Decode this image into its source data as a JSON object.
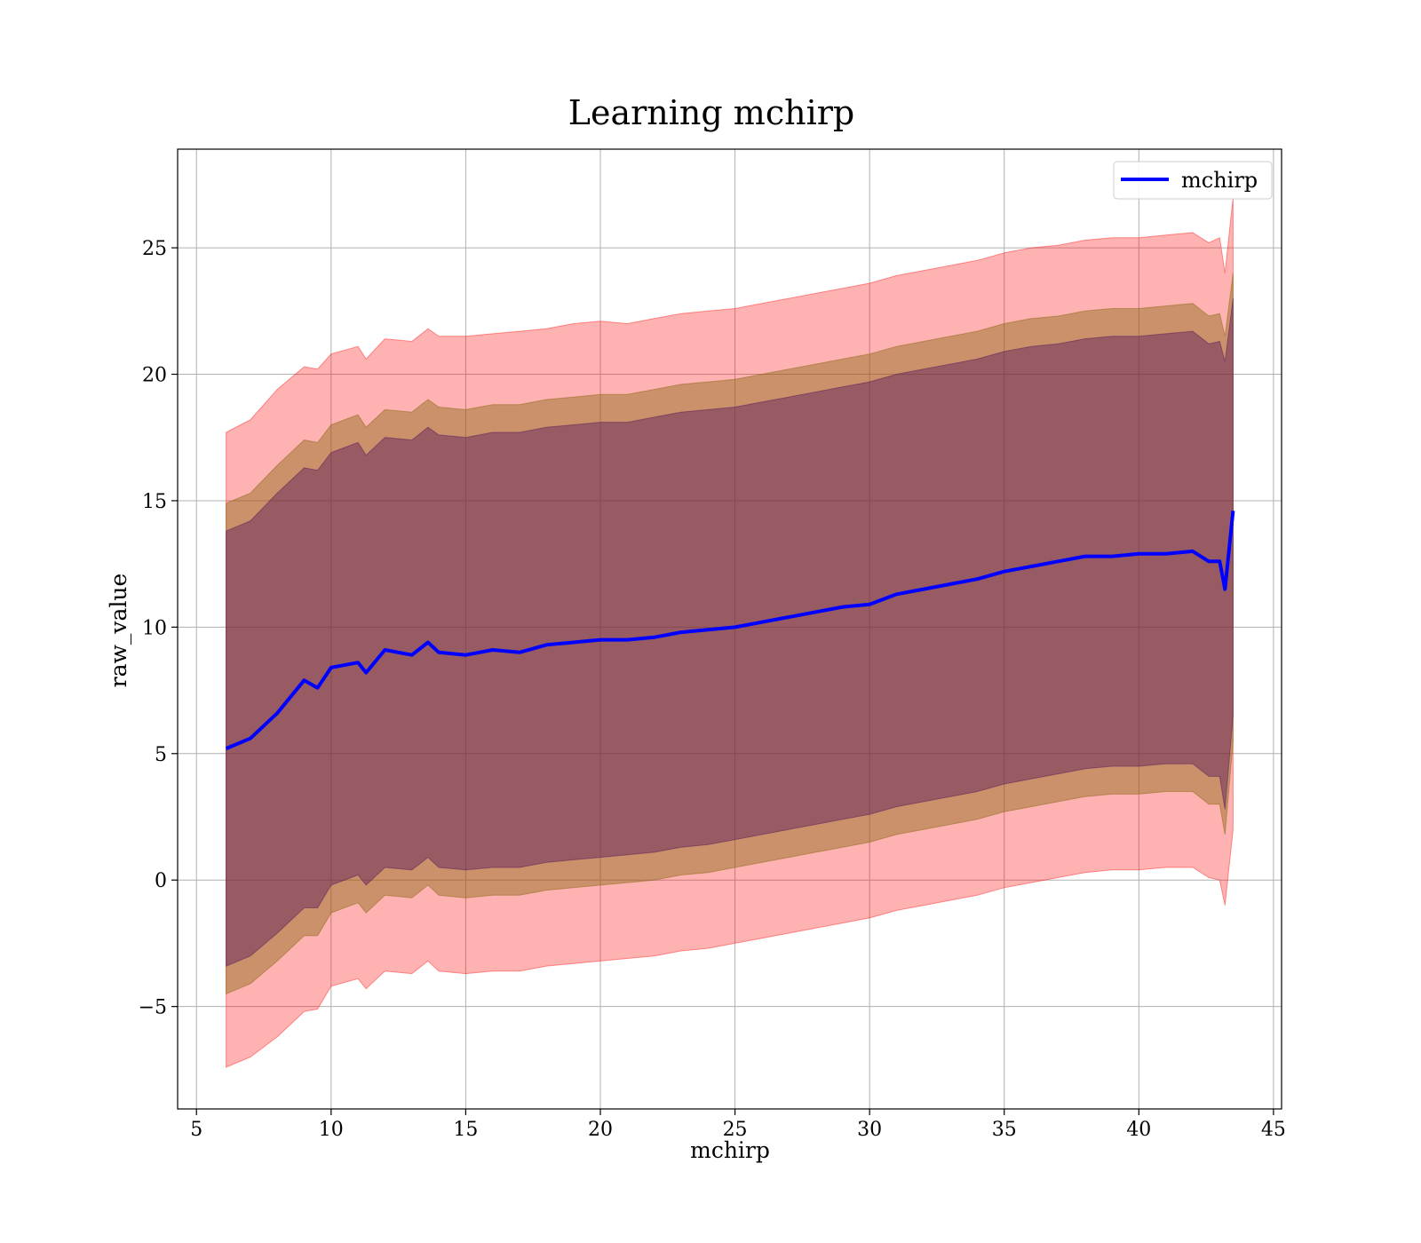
{
  "chart_data": {
    "type": "area",
    "title": "Learning mchirp",
    "xlabel": "mchirp",
    "ylabel": "raw_value",
    "xlim": [
      4.3,
      45.3
    ],
    "ylim": [
      -9.05,
      28.9
    ],
    "xticks": [
      5,
      10,
      15,
      20,
      25,
      30,
      35,
      40,
      45
    ],
    "xtick_labels": [
      "5",
      "10",
      "15",
      "20",
      "25",
      "30",
      "35",
      "40",
      "45"
    ],
    "yticks": [
      -5,
      0,
      5,
      10,
      15,
      20,
      25
    ],
    "ytick_labels": [
      "−5",
      "0",
      "5",
      "10",
      "15",
      "20",
      "25"
    ],
    "grid": true,
    "legend": {
      "position": "top-right",
      "entries": [
        "mchirp"
      ]
    },
    "colors": {
      "line": "#0000ff",
      "band_outer": "#ff0000",
      "band_middle": "#8b6914",
      "band_inner": "#5a1a5a",
      "grid": "#b0b0b0"
    },
    "x": [
      6.1,
      7,
      8,
      9,
      9.5,
      10,
      11,
      11.3,
      12,
      13,
      13.6,
      14,
      15,
      16,
      17,
      18,
      19,
      20,
      21,
      22,
      23,
      24,
      25,
      26,
      27,
      28,
      29,
      30,
      31,
      32,
      33,
      34,
      35,
      36,
      37,
      38,
      39,
      40,
      41,
      42,
      42.6,
      43,
      43.2,
      43.5
    ],
    "series": [
      {
        "name": "mchirp",
        "role": "mean",
        "values": [
          5.2,
          5.6,
          6.6,
          7.9,
          7.6,
          8.4,
          8.6,
          8.2,
          9.1,
          8.9,
          9.4,
          9.0,
          8.9,
          9.1,
          9.0,
          9.3,
          9.4,
          9.5,
          9.5,
          9.6,
          9.8,
          9.9,
          10.0,
          10.2,
          10.4,
          10.6,
          10.8,
          10.9,
          11.3,
          11.5,
          11.7,
          11.9,
          12.2,
          12.4,
          12.6,
          12.8,
          12.8,
          12.9,
          12.9,
          13.0,
          12.6,
          12.6,
          11.5,
          14.6
        ]
      },
      {
        "role": "band_outer_upper",
        "values": [
          17.7,
          18.2,
          19.4,
          20.3,
          20.2,
          20.8,
          21.1,
          20.6,
          21.4,
          21.3,
          21.8,
          21.5,
          21.5,
          21.6,
          21.7,
          21.8,
          22.0,
          22.1,
          22.0,
          22.2,
          22.4,
          22.5,
          22.6,
          22.8,
          23.0,
          23.2,
          23.4,
          23.6,
          23.9,
          24.1,
          24.3,
          24.5,
          24.8,
          25.0,
          25.1,
          25.3,
          25.4,
          25.4,
          25.5,
          25.6,
          25.2,
          25.4,
          24.0,
          27.0
        ]
      },
      {
        "role": "band_outer_lower",
        "values": [
          -7.4,
          -7.0,
          -6.2,
          -5.2,
          -5.1,
          -4.2,
          -3.9,
          -4.3,
          -3.6,
          -3.7,
          -3.2,
          -3.6,
          -3.7,
          -3.6,
          -3.6,
          -3.4,
          -3.3,
          -3.2,
          -3.1,
          -3.0,
          -2.8,
          -2.7,
          -2.5,
          -2.3,
          -2.1,
          -1.9,
          -1.7,
          -1.5,
          -1.2,
          -1.0,
          -0.8,
          -0.6,
          -0.3,
          -0.1,
          0.1,
          0.3,
          0.4,
          0.4,
          0.5,
          0.5,
          0.1,
          0.0,
          -1.0,
          2.0
        ]
      },
      {
        "role": "band_middle_upper",
        "values": [
          14.9,
          15.3,
          16.4,
          17.4,
          17.3,
          18.0,
          18.4,
          17.9,
          18.6,
          18.5,
          19.0,
          18.7,
          18.6,
          18.8,
          18.8,
          19.0,
          19.1,
          19.2,
          19.2,
          19.4,
          19.6,
          19.7,
          19.8,
          20.0,
          20.2,
          20.4,
          20.6,
          20.8,
          21.1,
          21.3,
          21.5,
          21.7,
          22.0,
          22.2,
          22.3,
          22.5,
          22.6,
          22.6,
          22.7,
          22.8,
          22.3,
          22.4,
          21.5,
          24.0
        ]
      },
      {
        "role": "band_middle_lower",
        "values": [
          -4.5,
          -4.1,
          -3.2,
          -2.2,
          -2.2,
          -1.3,
          -0.9,
          -1.3,
          -0.6,
          -0.7,
          -0.2,
          -0.6,
          -0.7,
          -0.6,
          -0.6,
          -0.4,
          -0.3,
          -0.2,
          -0.1,
          0.0,
          0.2,
          0.3,
          0.5,
          0.7,
          0.9,
          1.1,
          1.3,
          1.5,
          1.8,
          2.0,
          2.2,
          2.4,
          2.7,
          2.9,
          3.1,
          3.3,
          3.4,
          3.4,
          3.5,
          3.5,
          3.0,
          3.0,
          1.8,
          5.5
        ]
      },
      {
        "role": "band_inner_upper",
        "values": [
          13.8,
          14.2,
          15.3,
          16.3,
          16.2,
          16.9,
          17.3,
          16.8,
          17.5,
          17.4,
          17.9,
          17.6,
          17.5,
          17.7,
          17.7,
          17.9,
          18.0,
          18.1,
          18.1,
          18.3,
          18.5,
          18.6,
          18.7,
          18.9,
          19.1,
          19.3,
          19.5,
          19.7,
          20.0,
          20.2,
          20.4,
          20.6,
          20.9,
          21.1,
          21.2,
          21.4,
          21.5,
          21.5,
          21.6,
          21.7,
          21.2,
          21.3,
          20.5,
          23.0
        ]
      },
      {
        "role": "band_inner_lower",
        "values": [
          -3.4,
          -3.0,
          -2.1,
          -1.1,
          -1.1,
          -0.2,
          0.2,
          -0.2,
          0.5,
          0.4,
          0.9,
          0.5,
          0.4,
          0.5,
          0.5,
          0.7,
          0.8,
          0.9,
          1.0,
          1.1,
          1.3,
          1.4,
          1.6,
          1.8,
          2.0,
          2.2,
          2.4,
          2.6,
          2.9,
          3.1,
          3.3,
          3.5,
          3.8,
          4.0,
          4.2,
          4.4,
          4.5,
          4.5,
          4.6,
          4.6,
          4.1,
          4.1,
          2.8,
          6.5
        ]
      }
    ]
  }
}
